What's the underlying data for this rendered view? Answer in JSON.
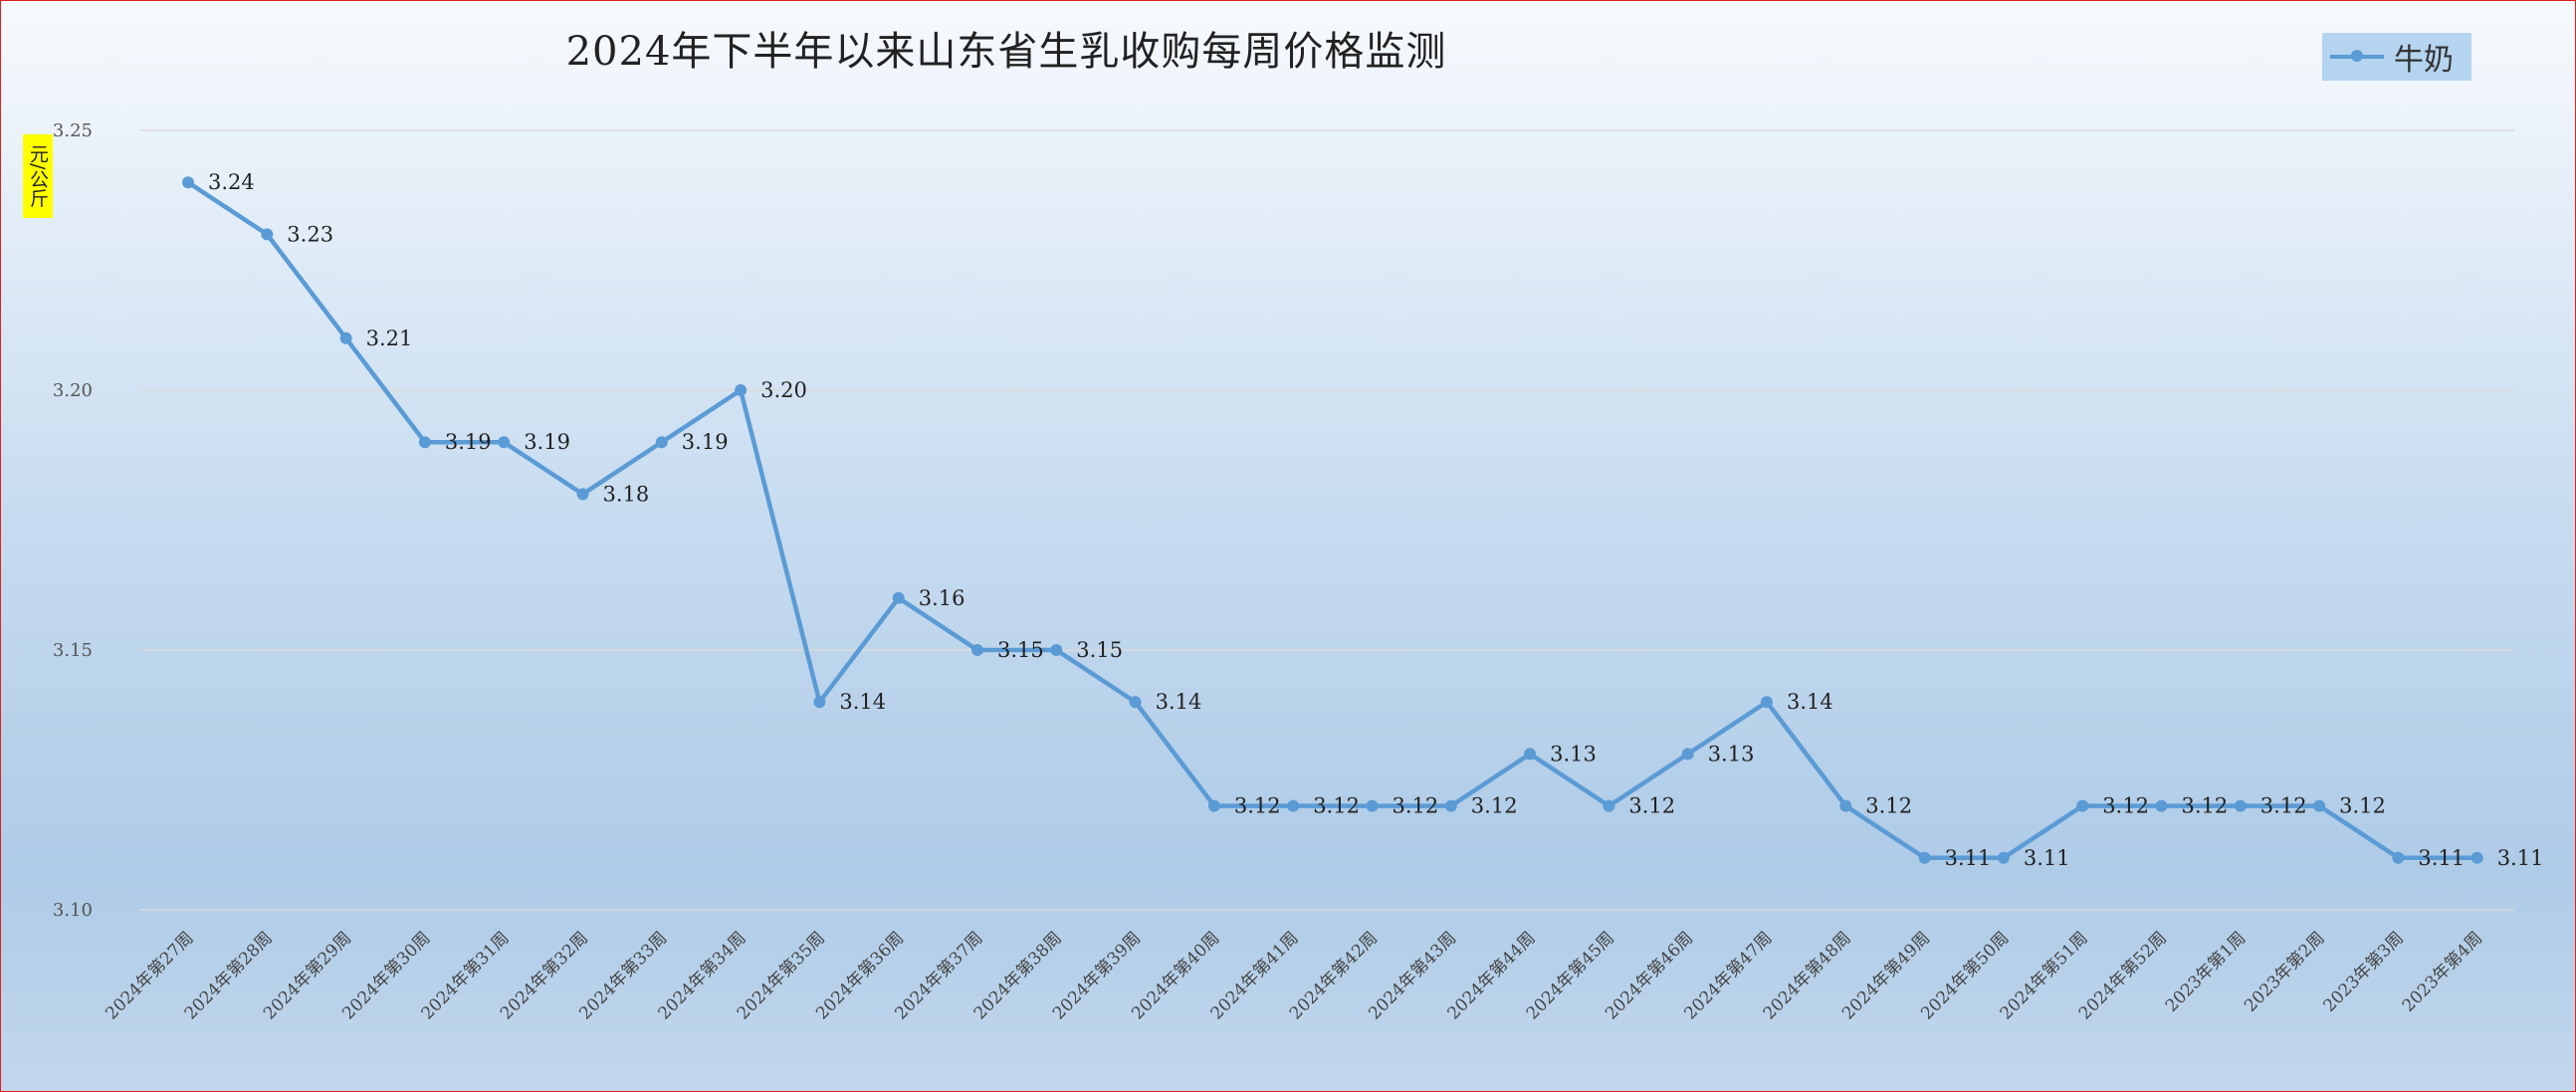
{
  "chart_data": {
    "type": "line",
    "title": "2024年下半年以来山东省生乳收购每周价格监测",
    "ylabel": "元/公斤",
    "xlabel": "",
    "ylim": [
      3.1,
      3.25
    ],
    "yticks": [
      "3.25",
      "3.20",
      "3.15",
      "3.10"
    ],
    "legend_position": "top-right",
    "grid": true,
    "categories": [
      "2024年第27周",
      "2024年第28周",
      "2024年第29周",
      "2024年第30周",
      "2024年第31周",
      "2024年第32周",
      "2024年第33周",
      "2024年第34周",
      "2024年第35周",
      "2024年第36周",
      "2024年第37周",
      "2024年第38周",
      "2024年第39周",
      "2024年第40周",
      "2024年第41周",
      "2024年第42周",
      "2024年第43周",
      "2024年第44周",
      "2024年第45周",
      "2024年第46周",
      "2024年第47周",
      "2024年第48周",
      "2024年第49周",
      "2024年第50周",
      "2024年第51周",
      "2024年第52周",
      "2023年第1周",
      "2023年第2周",
      "2023年第3周",
      "2023年第4周"
    ],
    "series": [
      {
        "name": "牛奶",
        "color": "#5b9bd5",
        "values": [
          3.24,
          3.23,
          3.21,
          3.19,
          3.19,
          3.18,
          3.19,
          3.2,
          3.14,
          3.16,
          3.15,
          3.15,
          3.14,
          3.12,
          3.12,
          3.12,
          3.12,
          3.13,
          3.12,
          3.13,
          3.14,
          3.12,
          3.11,
          3.11,
          3.12,
          3.12,
          3.12,
          3.12,
          3.11,
          3.11
        ],
        "labels": [
          "3.24",
          "3.23",
          "3.21",
          "3.19",
          "3.19",
          "3.18",
          "3.19",
          "3.20",
          "3.14",
          "3.16",
          "3.15",
          "3.15",
          "3.14",
          "3.12",
          "3.12",
          "3.12",
          "3.12",
          "3.13",
          "3.12",
          "3.13",
          "3.14",
          "3.12",
          "3.11",
          "3.11",
          "3.12",
          "3.12",
          "3.12",
          "3.12",
          "3.11",
          "3.11"
        ]
      }
    ]
  }
}
